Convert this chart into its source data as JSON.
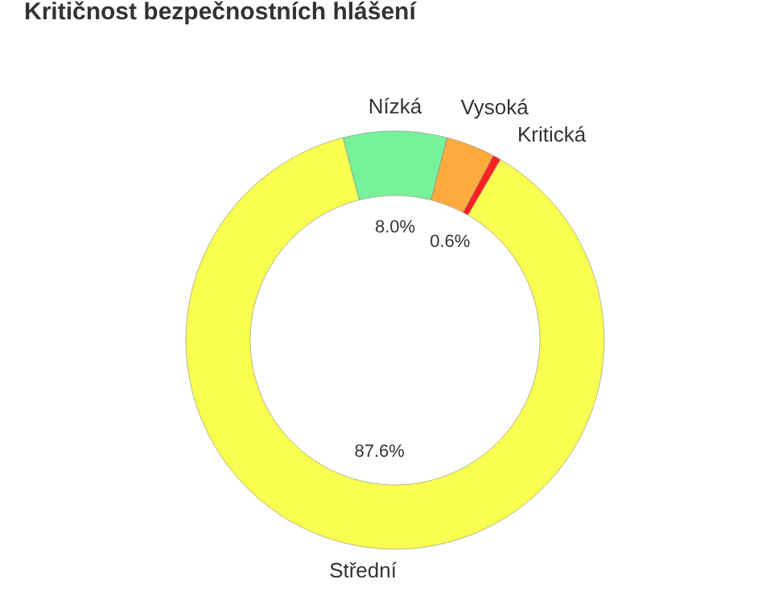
{
  "chart_data": {
    "type": "donut",
    "title": "Kritičnost bezpečnostních hlášení",
    "categories": [
      "Nízká",
      "Vysoká",
      "Kritická",
      "Střední"
    ],
    "values": [
      8.0,
      3.8,
      0.6,
      87.6
    ],
    "colors": [
      "#77f29a",
      "#ffaa3c",
      "#ff2020",
      "#f8ff50"
    ],
    "value_labels": [
      "8.0%",
      null,
      "0.6%",
      "87.6%"
    ]
  }
}
